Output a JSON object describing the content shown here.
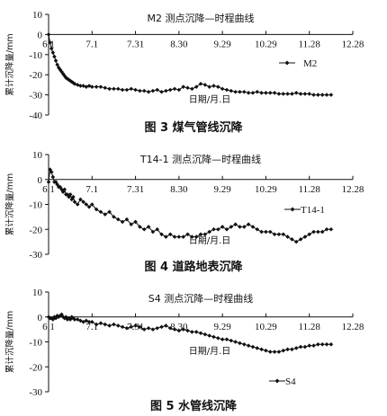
{
  "chart_data": [
    {
      "type": "scatter",
      "title": "M2 测点沉降—时程曲线",
      "xlabel": "日期/月.日",
      "ylabel": "累计沉降量/mm",
      "caption": "图 3    煤气管线沉降",
      "x_ticks": [
        "6.1",
        "7.1",
        "7.31",
        "8.30",
        "9.29",
        "10.29",
        "11.28",
        "12.28"
      ],
      "ylim": [
        -40,
        10
      ],
      "y_ticks": [
        10,
        0,
        -10,
        -20,
        -30,
        -40
      ],
      "legend": "top-right",
      "series": [
        {
          "name": "M2",
          "x": [
            0,
            1,
            2,
            3,
            4,
            5,
            6,
            7,
            8,
            9,
            10,
            11,
            12,
            13,
            14,
            15,
            16,
            17,
            18,
            20,
            22,
            24,
            26,
            28,
            30,
            33,
            36,
            39,
            42,
            45,
            48,
            51,
            54,
            57,
            60,
            63,
            66,
            69,
            72,
            75,
            78,
            81,
            84,
            87,
            90,
            93,
            96,
            99,
            102,
            105,
            108,
            111,
            114,
            117,
            120,
            123,
            126,
            129,
            132,
            135,
            138,
            141,
            144,
            147,
            150,
            153,
            156,
            159,
            162,
            165,
            168,
            171,
            174,
            177,
            180,
            183,
            186,
            189,
            192,
            195
          ],
          "y": [
            0,
            -4,
            -7,
            -9,
            -11,
            -13,
            -15,
            -16.5,
            -17.5,
            -18.5,
            -19.5,
            -20.5,
            -21.5,
            -22,
            -22.5,
            -23,
            -23.5,
            -24,
            -24.5,
            -25,
            -25.5,
            -25.5,
            -26,
            -25.5,
            -26,
            -26,
            -26,
            -26.5,
            -27,
            -27,
            -27,
            -27.5,
            -27.5,
            -27,
            -27.5,
            -28,
            -28,
            -28.5,
            -28,
            -27.5,
            -28.5,
            -28,
            -27.5,
            -27,
            -27.5,
            -26,
            -26.5,
            -27,
            -26,
            -24.5,
            -25,
            -26,
            -25.5,
            -26,
            -27,
            -27.5,
            -28,
            -28.5,
            -28.5,
            -28.5,
            -29,
            -29,
            -28.5,
            -29,
            -29,
            -29,
            -29,
            -29.5,
            -29.5,
            -29.5,
            -29.5,
            -29,
            -29.5,
            -29.5,
            -29.5,
            -30,
            -30,
            -30,
            -30,
            -30
          ]
        }
      ]
    },
    {
      "type": "scatter",
      "title": "T14-1 测点沉降—时程曲线",
      "xlabel": "日期/月.日",
      "ylabel": "累计沉降量/mm",
      "caption": "图 4    道路地表沉降",
      "x_ticks": [
        "6.1",
        "7.1",
        "7.31",
        "8.30",
        "9.29",
        "10.29",
        "11.28",
        "12.28"
      ],
      "ylim": [
        -30,
        10
      ],
      "y_ticks": [
        10,
        0,
        -10,
        -20,
        -30
      ],
      "legend": "right",
      "series": [
        {
          "name": "T14-1",
          "x": [
            0,
            1,
            2,
            3,
            4,
            5,
            6,
            7,
            8,
            9,
            10,
            11,
            12,
            13,
            14,
            15,
            16,
            17,
            18,
            20,
            22,
            24,
            26,
            28,
            30,
            33,
            36,
            39,
            42,
            45,
            48,
            51,
            54,
            57,
            60,
            63,
            66,
            69,
            72,
            75,
            78,
            81,
            84,
            87,
            90,
            93,
            96,
            99,
            102,
            105,
            108,
            111,
            114,
            117,
            120,
            123,
            126,
            129,
            132,
            135,
            138,
            141,
            144,
            147,
            150,
            153,
            156,
            159,
            162,
            165,
            168,
            171,
            174,
            177,
            180,
            183,
            186,
            189,
            192,
            195
          ],
          "y": [
            -1,
            4,
            3,
            1,
            -1,
            -1,
            -2,
            -3,
            -3,
            -4,
            -5,
            -4,
            -6,
            -6,
            -7,
            -6,
            -8,
            -7,
            -9,
            -10,
            -8,
            -9,
            -10,
            -11,
            -10,
            -12,
            -13,
            -14,
            -13,
            -15,
            -16,
            -17,
            -16,
            -18,
            -17,
            -19,
            -20,
            -19,
            -21,
            -20,
            -22,
            -23,
            -22,
            -23,
            -23,
            -23,
            -22,
            -23,
            -23,
            -22,
            -22,
            -21,
            -20,
            -20,
            -19,
            -20,
            -19,
            -18,
            -19,
            -19,
            -18,
            -19,
            -20,
            -21,
            -21,
            -21,
            -22,
            -22,
            -22,
            -23,
            -24,
            -25,
            -24,
            -23,
            -22,
            -21,
            -21,
            -21,
            -20,
            -20
          ]
        }
      ]
    },
    {
      "type": "scatter",
      "title": "S4 测点沉降—时程曲线",
      "xlabel": "日期/月.日",
      "ylabel": "累计沉降量/mm",
      "caption": "图 5    水管线沉降",
      "x_ticks": [
        "6.1",
        "7.1",
        "7.31",
        "8.30",
        "9.29",
        "10.29",
        "11.28",
        "12.28"
      ],
      "ylim": [
        -30,
        10
      ],
      "y_ticks": [
        10,
        0,
        -10,
        -20,
        -30
      ],
      "legend": "bottom-right",
      "series": [
        {
          "name": "S4",
          "x": [
            0,
            1,
            2,
            3,
            4,
            5,
            6,
            7,
            8,
            9,
            10,
            11,
            12,
            13,
            14,
            15,
            16,
            17,
            18,
            20,
            22,
            24,
            26,
            28,
            30,
            33,
            36,
            39,
            42,
            45,
            48,
            51,
            54,
            57,
            60,
            63,
            66,
            69,
            72,
            75,
            78,
            81,
            84,
            87,
            90,
            93,
            96,
            99,
            102,
            105,
            108,
            111,
            114,
            117,
            120,
            123,
            126,
            129,
            132,
            135,
            138,
            141,
            144,
            147,
            150,
            153,
            156,
            159,
            162,
            165,
            168,
            171,
            174,
            177,
            180,
            183,
            186,
            189,
            192,
            195
          ],
          "y": [
            0,
            -0.5,
            -0.5,
            -1,
            0,
            -0.5,
            0.5,
            0,
            0.5,
            1,
            0,
            -0.5,
            0,
            -1,
            -0.5,
            -1,
            0,
            -0.5,
            -1,
            -1,
            -1.5,
            -2,
            -1.5,
            -2,
            -2,
            -3,
            -2.5,
            -3,
            -3.5,
            -3,
            -3.5,
            -4,
            -4.5,
            -4,
            -3.5,
            -4,
            -5,
            -4.5,
            -5,
            -4.5,
            -4,
            -3.5,
            -4.5,
            -5,
            -5.5,
            -5,
            -5.5,
            -6,
            -6,
            -6.5,
            -7,
            -7.5,
            -8,
            -8.5,
            -9,
            -9,
            -9.5,
            -10,
            -10.5,
            -11,
            -11.5,
            -12,
            -12.5,
            -13,
            -13.5,
            -14,
            -14,
            -14,
            -13.5,
            -13,
            -13,
            -12.5,
            -12,
            -12,
            -11.5,
            -11.5,
            -11,
            -11,
            -11,
            -11
          ]
        }
      ]
    }
  ]
}
